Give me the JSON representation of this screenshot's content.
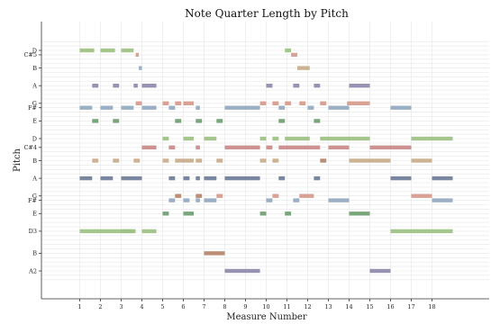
{
  "chart_data": {
    "type": "bar",
    "title": "Note Quarter Length by Pitch",
    "xlabel": "Measure Number",
    "ylabel": "Pitch",
    "xlim": [
      0,
      19.7
    ],
    "x_ticks": [
      1,
      2,
      3,
      4,
      5,
      6,
      7,
      8,
      9,
      10,
      11,
      12,
      13,
      14,
      15,
      16,
      17,
      18
    ],
    "y_categories": [
      "A2",
      "B",
      "D3",
      "E",
      "F#",
      "G",
      "A",
      "B",
      "C#4",
      "D",
      "E",
      "F#",
      "G",
      "A",
      "B",
      "C#5",
      "D"
    ],
    "colors": {
      "green": "#9dc183",
      "blue": "#93a9bf",
      "pink": "#d69a8c",
      "purple": "#9089ad",
      "tan": "#c7ad8b",
      "darkgreen": "#6f9e70",
      "rose": "#c98a8a",
      "navy": "#6f7d99",
      "brown": "#b4856a"
    },
    "notes": [
      {
        "p": 16,
        "s": 1.0,
        "e": 1.7,
        "c": "green"
      },
      {
        "p": 16,
        "s": 2.0,
        "e": 2.7,
        "c": "green"
      },
      {
        "p": 16,
        "s": 3.0,
        "e": 3.6,
        "c": "green"
      },
      {
        "p": 16,
        "s": 10.9,
        "e": 11.2,
        "c": "green"
      },
      {
        "p": 15,
        "s": 3.7,
        "e": 3.85,
        "c": "pink"
      },
      {
        "p": 15,
        "s": 11.2,
        "e": 11.5,
        "c": "pink"
      },
      {
        "p": 14,
        "s": 3.85,
        "e": 4.0,
        "c": "blue"
      },
      {
        "p": 14,
        "s": 11.5,
        "e": 12.1,
        "c": "tan"
      },
      {
        "p": 13,
        "s": 1.6,
        "e": 1.9,
        "c": "purple"
      },
      {
        "p": 13,
        "s": 2.6,
        "e": 2.9,
        "c": "purple"
      },
      {
        "p": 13,
        "s": 3.6,
        "e": 3.8,
        "c": "purple"
      },
      {
        "p": 13,
        "s": 4.0,
        "e": 4.7,
        "c": "purple"
      },
      {
        "p": 13,
        "s": 10.0,
        "e": 10.3,
        "c": "purple"
      },
      {
        "p": 13,
        "s": 11.3,
        "e": 11.6,
        "c": "purple"
      },
      {
        "p": 13,
        "s": 12.3,
        "e": 12.6,
        "c": "purple"
      },
      {
        "p": 13,
        "s": 14.0,
        "e": 15.0,
        "c": "purple"
      },
      {
        "p": 12,
        "s": 3.7,
        "e": 4.0,
        "c": "pink"
      },
      {
        "p": 12,
        "s": 5.0,
        "e": 5.3,
        "c": "pink"
      },
      {
        "p": 12,
        "s": 5.6,
        "e": 5.9,
        "c": "pink"
      },
      {
        "p": 12,
        "s": 6.0,
        "e": 6.5,
        "c": "pink"
      },
      {
        "p": 12,
        "s": 9.7,
        "e": 10.0,
        "c": "pink"
      },
      {
        "p": 12,
        "s": 10.3,
        "e": 10.6,
        "c": "pink"
      },
      {
        "p": 12,
        "s": 10.9,
        "e": 11.2,
        "c": "pink"
      },
      {
        "p": 12,
        "s": 11.6,
        "e": 11.9,
        "c": "pink"
      },
      {
        "p": 12,
        "s": 12.6,
        "e": 12.9,
        "c": "pink"
      },
      {
        "p": 12,
        "s": 13.9,
        "e": 15.0,
        "c": "pink"
      },
      {
        "p": 11,
        "s": 1.0,
        "e": 1.6,
        "c": "blue"
      },
      {
        "p": 11,
        "s": 2.0,
        "e": 2.6,
        "c": "blue"
      },
      {
        "p": 11,
        "s": 3.0,
        "e": 3.6,
        "c": "blue"
      },
      {
        "p": 11,
        "s": 4.0,
        "e": 4.7,
        "c": "blue"
      },
      {
        "p": 11,
        "s": 5.3,
        "e": 5.6,
        "c": "blue"
      },
      {
        "p": 11,
        "s": 6.6,
        "e": 6.8,
        "c": "blue"
      },
      {
        "p": 11,
        "s": 8.0,
        "e": 9.7,
        "c": "blue"
      },
      {
        "p": 11,
        "s": 10.6,
        "e": 10.9,
        "c": "blue"
      },
      {
        "p": 11,
        "s": 12.0,
        "e": 12.3,
        "c": "blue"
      },
      {
        "p": 11,
        "s": 13.0,
        "e": 14.0,
        "c": "blue"
      },
      {
        "p": 11,
        "s": 16.0,
        "e": 17.0,
        "c": "blue"
      },
      {
        "p": 10,
        "s": 1.6,
        "e": 1.9,
        "c": "darkgreen"
      },
      {
        "p": 10,
        "s": 2.6,
        "e": 2.9,
        "c": "darkgreen"
      },
      {
        "p": 10,
        "s": 5.6,
        "e": 5.9,
        "c": "darkgreen"
      },
      {
        "p": 10,
        "s": 6.6,
        "e": 6.9,
        "c": "darkgreen"
      },
      {
        "p": 10,
        "s": 7.6,
        "e": 7.9,
        "c": "darkgreen"
      },
      {
        "p": 10,
        "s": 10.6,
        "e": 10.9,
        "c": "darkgreen"
      },
      {
        "p": 10,
        "s": 12.3,
        "e": 12.6,
        "c": "darkgreen"
      },
      {
        "p": 9,
        "s": 5.0,
        "e": 5.3,
        "c": "green"
      },
      {
        "p": 9,
        "s": 6.0,
        "e": 6.5,
        "c": "green"
      },
      {
        "p": 9,
        "s": 7.0,
        "e": 7.6,
        "c": "green"
      },
      {
        "p": 9,
        "s": 9.7,
        "e": 10.0,
        "c": "green"
      },
      {
        "p": 9,
        "s": 10.3,
        "e": 10.6,
        "c": "green"
      },
      {
        "p": 9,
        "s": 10.9,
        "e": 12.1,
        "c": "green"
      },
      {
        "p": 9,
        "s": 12.6,
        "e": 15.0,
        "c": "green"
      },
      {
        "p": 9,
        "s": 17.0,
        "e": 19.0,
        "c": "green"
      },
      {
        "p": 8,
        "s": 4.0,
        "e": 4.7,
        "c": "rose"
      },
      {
        "p": 8,
        "s": 5.3,
        "e": 5.6,
        "c": "rose"
      },
      {
        "p": 8,
        "s": 6.6,
        "e": 6.8,
        "c": "rose"
      },
      {
        "p": 8,
        "s": 8.0,
        "e": 9.7,
        "c": "rose"
      },
      {
        "p": 8,
        "s": 10.0,
        "e": 10.3,
        "c": "rose"
      },
      {
        "p": 8,
        "s": 10.6,
        "e": 12.3,
        "c": "rose"
      },
      {
        "p": 8,
        "s": 12.3,
        "e": 12.6,
        "c": "rose"
      },
      {
        "p": 8,
        "s": 13.0,
        "e": 14.0,
        "c": "rose"
      },
      {
        "p": 8,
        "s": 15.0,
        "e": 17.0,
        "c": "rose"
      },
      {
        "p": 7,
        "s": 1.6,
        "e": 1.9,
        "c": "tan"
      },
      {
        "p": 7,
        "s": 2.6,
        "e": 2.9,
        "c": "tan"
      },
      {
        "p": 7,
        "s": 3.6,
        "e": 3.9,
        "c": "tan"
      },
      {
        "p": 7,
        "s": 5.0,
        "e": 5.3,
        "c": "tan"
      },
      {
        "p": 7,
        "s": 5.6,
        "e": 6.5,
        "c": "tan"
      },
      {
        "p": 7,
        "s": 6.6,
        "e": 6.9,
        "c": "tan"
      },
      {
        "p": 7,
        "s": 7.6,
        "e": 7.9,
        "c": "tan"
      },
      {
        "p": 7,
        "s": 9.7,
        "e": 10.0,
        "c": "tan"
      },
      {
        "p": 7,
        "s": 10.3,
        "e": 10.6,
        "c": "tan"
      },
      {
        "p": 7,
        "s": 12.6,
        "e": 12.9,
        "c": "brown"
      },
      {
        "p": 7,
        "s": 14.0,
        "e": 16.0,
        "c": "tan"
      },
      {
        "p": 7,
        "s": 17.0,
        "e": 18.0,
        "c": "tan"
      },
      {
        "p": 6,
        "s": 1.0,
        "e": 1.6,
        "c": "navy"
      },
      {
        "p": 6,
        "s": 2.0,
        "e": 2.6,
        "c": "navy"
      },
      {
        "p": 6,
        "s": 3.0,
        "e": 4.0,
        "c": "navy"
      },
      {
        "p": 6,
        "s": 5.3,
        "e": 5.6,
        "c": "navy"
      },
      {
        "p": 6,
        "s": 6.0,
        "e": 6.3,
        "c": "navy"
      },
      {
        "p": 6,
        "s": 6.6,
        "e": 6.8,
        "c": "navy"
      },
      {
        "p": 6,
        "s": 7.0,
        "e": 7.6,
        "c": "navy"
      },
      {
        "p": 6,
        "s": 8.0,
        "e": 9.7,
        "c": "navy"
      },
      {
        "p": 6,
        "s": 10.6,
        "e": 10.9,
        "c": "navy"
      },
      {
        "p": 6,
        "s": 12.3,
        "e": 12.6,
        "c": "navy"
      },
      {
        "p": 6,
        "s": 16.0,
        "e": 17.0,
        "c": "navy"
      },
      {
        "p": 6,
        "s": 18.0,
        "e": 19.0,
        "c": "navy"
      },
      {
        "p": 5,
        "s": 5.6,
        "e": 5.9,
        "c": "brown"
      },
      {
        "p": 5,
        "s": 6.6,
        "e": 6.9,
        "c": "brown"
      },
      {
        "p": 5,
        "s": 7.6,
        "e": 7.9,
        "c": "pink"
      },
      {
        "p": 5,
        "s": 10.3,
        "e": 10.6,
        "c": "pink"
      },
      {
        "p": 5,
        "s": 11.6,
        "e": 12.3,
        "c": "pink"
      },
      {
        "p": 5,
        "s": 17.0,
        "e": 18.0,
        "c": "pink"
      },
      {
        "p": 4,
        "s": 5.3,
        "e": 5.6,
        "c": "blue"
      },
      {
        "p": 4,
        "s": 6.0,
        "e": 6.3,
        "c": "blue"
      },
      {
        "p": 4,
        "s": 6.6,
        "e": 6.8,
        "c": "blue"
      },
      {
        "p": 4,
        "s": 7.0,
        "e": 7.6,
        "c": "blue"
      },
      {
        "p": 4,
        "s": 10.0,
        "e": 10.3,
        "c": "blue"
      },
      {
        "p": 4,
        "s": 11.3,
        "e": 11.6,
        "c": "blue"
      },
      {
        "p": 4,
        "s": 13.0,
        "e": 14.0,
        "c": "blue"
      },
      {
        "p": 4,
        "s": 18.0,
        "e": 19.0,
        "c": "blue"
      },
      {
        "p": 3,
        "s": 5.0,
        "e": 5.3,
        "c": "darkgreen"
      },
      {
        "p": 3,
        "s": 6.0,
        "e": 6.5,
        "c": "darkgreen"
      },
      {
        "p": 3,
        "s": 9.7,
        "e": 10.0,
        "c": "darkgreen"
      },
      {
        "p": 3,
        "s": 10.9,
        "e": 11.2,
        "c": "darkgreen"
      },
      {
        "p": 3,
        "s": 14.0,
        "e": 15.0,
        "c": "darkgreen"
      },
      {
        "p": 2,
        "s": 1.0,
        "e": 3.6,
        "c": "green"
      },
      {
        "p": 2,
        "s": 3.0,
        "e": 3.7,
        "c": "green"
      },
      {
        "p": 2,
        "s": 4.0,
        "e": 4.7,
        "c": "green"
      },
      {
        "p": 2,
        "s": 16.0,
        "e": 19.0,
        "c": "green"
      },
      {
        "p": 1,
        "s": 7.0,
        "e": 8.0,
        "c": "brown"
      },
      {
        "p": 0,
        "s": 8.0,
        "e": 9.7,
        "c": "purple"
      },
      {
        "p": 0,
        "s": 15.0,
        "e": 16.0,
        "c": "purple"
      }
    ]
  }
}
